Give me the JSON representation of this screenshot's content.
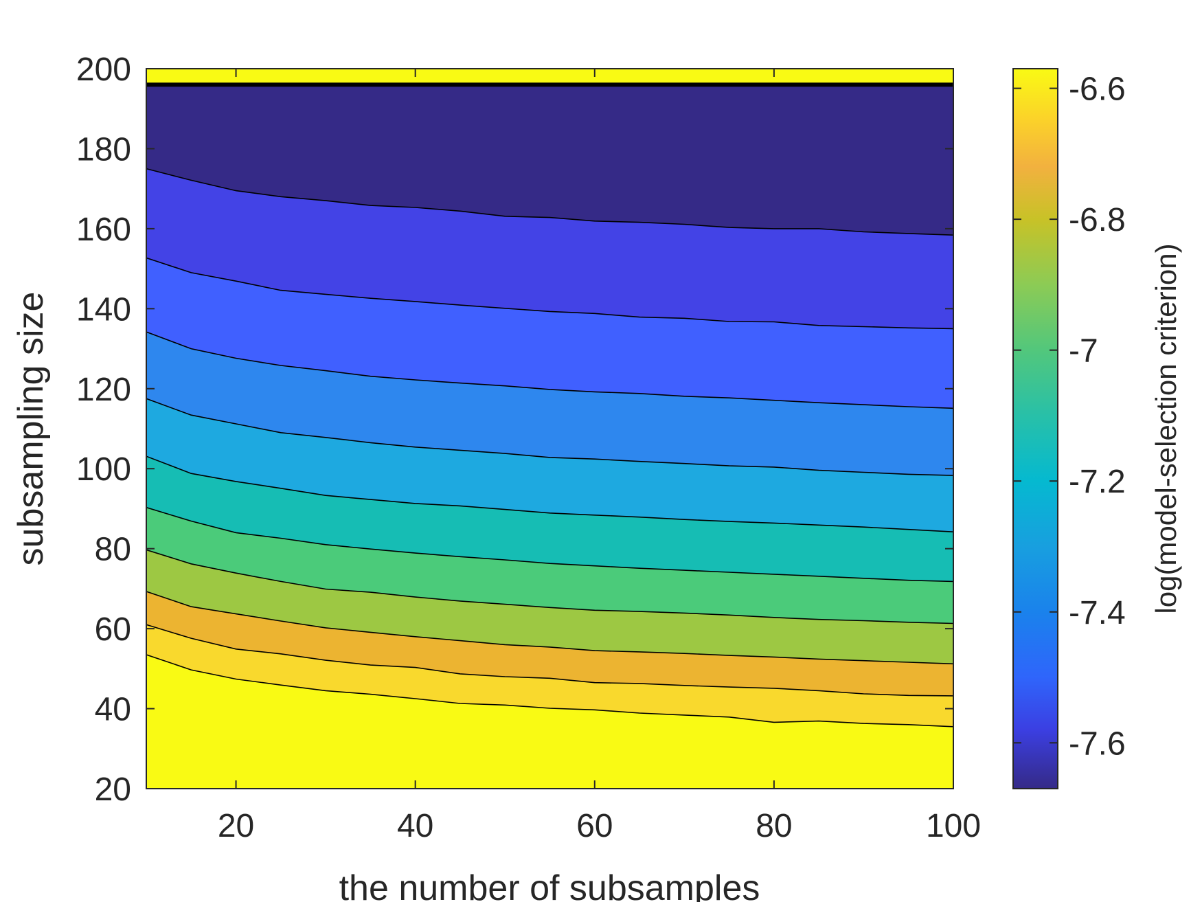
{
  "chart_data": {
    "type": "contourf",
    "xlabel": "the number of subsamples",
    "ylabel": "subsampling size",
    "colorbar_label": "log(model-selection criterion)",
    "xlim": [
      10,
      100
    ],
    "ylim": [
      20,
      200
    ],
    "x_ticks": [
      "20",
      "40",
      "60",
      "80",
      "100"
    ],
    "y_ticks": [
      "20",
      "40",
      "60",
      "80",
      "100",
      "120",
      "140",
      "160",
      "180",
      "200"
    ],
    "colorbar_range": [
      -7.67,
      -6.57
    ],
    "colorbar_ticks": [
      "-6.6",
      "-6.8",
      "-7",
      "-7.2",
      "-7.4",
      "-7.6"
    ],
    "colormap": "parula",
    "top_band": {
      "from": 196,
      "to": 200,
      "color": "#F9FA14",
      "note_border": "#000000"
    },
    "x": [
      10,
      15,
      20,
      25,
      30,
      35,
      40,
      45,
      50,
      55,
      60,
      65,
      70,
      75,
      80,
      85,
      90,
      95,
      100
    ],
    "contour_lines": [
      [
        175,
        172.1,
        169.5,
        168,
        167,
        165.8,
        165.3,
        164.4,
        163.1,
        162.8,
        161.9,
        161.6,
        161.1,
        160.3,
        160,
        160,
        159.2,
        158.8,
        158.4
      ],
      [
        152.7,
        149,
        146.9,
        144.6,
        143.6,
        142.6,
        141.8,
        140.9,
        140.1,
        139.3,
        138.8,
        137.9,
        137.6,
        136.8,
        136.7,
        135.8,
        135.5,
        135.2,
        135
      ],
      [
        134.2,
        130,
        127.6,
        125.8,
        124.5,
        123.1,
        122.2,
        121.4,
        120.7,
        119.8,
        119.2,
        118.8,
        118.1,
        117.7,
        117.1,
        116.5,
        116,
        115.5,
        115.1
      ],
      [
        117.5,
        113.4,
        111.2,
        109,
        107.8,
        106.5,
        105.4,
        104.6,
        103.8,
        102.8,
        102.4,
        101.8,
        101.3,
        100.7,
        100.4,
        99.6,
        99.1,
        98.6,
        98.3
      ],
      [
        103.1,
        98.8,
        96.8,
        95.1,
        93.3,
        92.3,
        91.3,
        90.7,
        89.8,
        88.9,
        88.4,
        87.9,
        87.3,
        86.8,
        86.4,
        85.9,
        85.4,
        84.8,
        84.2
      ],
      [
        90.3,
        86.9,
        84,
        82.6,
        81,
        79.9,
        78.9,
        78,
        77.2,
        76.3,
        75.7,
        75.1,
        74.6,
        74.1,
        73.6,
        73.1,
        72.6,
        72.1,
        71.8
      ],
      [
        79.7,
        76.2,
        73.9,
        71.8,
        69.9,
        69.1,
        67.9,
        66.9,
        66.1,
        65.3,
        64.6,
        64.3,
        63.9,
        63.4,
        62.8,
        62.3,
        62,
        61.6,
        61.3
      ],
      [
        69.3,
        65.5,
        63.7,
        61.9,
        60.2,
        59.1,
        58,
        57,
        56,
        55.4,
        54.5,
        54.2,
        53.8,
        53.3,
        52.9,
        52.4,
        52,
        51.6,
        51.2
      ],
      [
        61,
        57.6,
        54.9,
        53.7,
        52.1,
        50.9,
        50.3,
        48.7,
        48,
        47.6,
        46.5,
        46.3,
        45.8,
        45.4,
        45.1,
        44.5,
        43.7,
        43.3,
        43.2
      ],
      [
        53.5,
        49.7,
        47.4,
        45.9,
        44.5,
        43.6,
        42.5,
        41.3,
        40.9,
        40.1,
        39.7,
        38.9,
        38.4,
        37.9,
        36.6,
        36.9,
        36.3,
        36,
        35.5
      ]
    ],
    "band_colors": [
      "#352A87",
      "#4343E6",
      "#4060FF",
      "#2E87EE",
      "#1EA9E0",
      "#16BDB4",
      "#4BCB7A",
      "#9DC843",
      "#ECB431",
      "#F9D92D",
      "#F9FA14"
    ],
    "colorbar_stops": [
      {
        "value": -7.67,
        "color": "#352A87"
      },
      {
        "value": -7.58,
        "color": "#3B3FE2"
      },
      {
        "value": -7.5,
        "color": "#2F65FB"
      },
      {
        "value": -7.4,
        "color": "#1A82EC"
      },
      {
        "value": -7.3,
        "color": "#189FDF"
      },
      {
        "value": -7.2,
        "color": "#05B9D0"
      },
      {
        "value": -7.1,
        "color": "#28C0A8"
      },
      {
        "value": -7.0,
        "color": "#52C77C"
      },
      {
        "value": -6.9,
        "color": "#8CCB55"
      },
      {
        "value": -6.8,
        "color": "#C8C227"
      },
      {
        "value": -6.72,
        "color": "#F2B13F"
      },
      {
        "value": -6.65,
        "color": "#FBD12A"
      },
      {
        "value": -6.57,
        "color": "#F9FA14"
      }
    ]
  }
}
